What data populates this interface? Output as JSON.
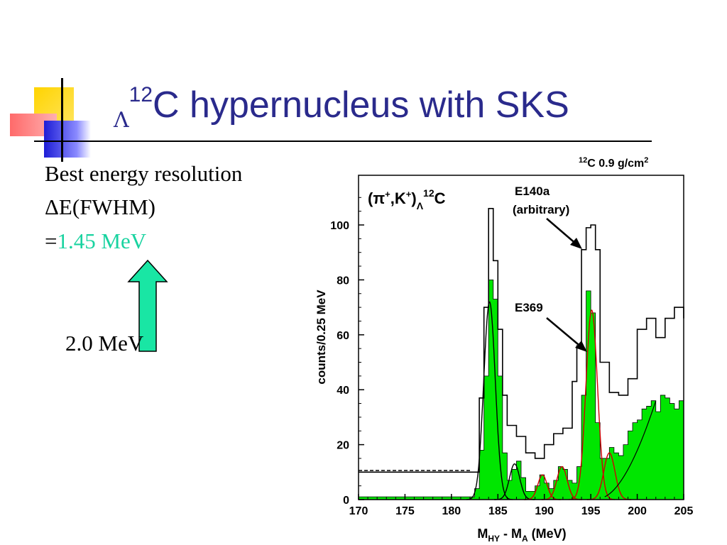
{
  "slide": {
    "title_prefix": "Λ",
    "title_superscript": "12",
    "title_text": "C hypernucleus with SKS",
    "body_line1": "Best energy resolution",
    "body_line2": "ΔE(FWHM)",
    "body_line3_prefix": "=",
    "body_line3_value": "1.45 MeV",
    "arrow_note": "2.0 MeV",
    "colors": {
      "title": "#2a2a8c",
      "accent": "#19d3a0",
      "arrow_fill": "#19e6a4"
    }
  },
  "chart_data": {
    "type": "line",
    "xlabel": "M_HY - M_A (MeV)",
    "ylabel": "counts/0.25 MeV",
    "xlim": [
      170,
      205
    ],
    "ylim": [
      0,
      115
    ],
    "x_ticks": [
      "170",
      "175",
      "180",
      "185",
      "190",
      "195",
      "200",
      "205"
    ],
    "y_ticks": [
      "0",
      "20",
      "40",
      "60",
      "80",
      "100"
    ],
    "annotations": {
      "reaction": "(π⁺,K⁺)Λ¹²C",
      "target": "¹²C 0.9 g/cm²",
      "e140a_line1": "E140a",
      "e140a_line2": "(arbitrary)",
      "e369": "E369"
    },
    "series": [
      {
        "name": "E140a",
        "x": [
          170,
          182.5,
          183.0,
          183.5,
          184.0,
          184.5,
          185.0,
          185.5,
          186,
          187,
          188,
          189,
          190,
          191,
          192,
          193,
          193.5,
          194,
          194.5,
          195,
          195.5,
          196,
          197,
          198,
          199,
          200,
          201,
          202,
          203,
          204,
          205
        ],
        "y": [
          10,
          10,
          37,
          70,
          106,
          87,
          62,
          38,
          27,
          23,
          17,
          15,
          20,
          24,
          26,
          43,
          56,
          91,
          99,
          100,
          91,
          50,
          39,
          38,
          44,
          62,
          66,
          59,
          66,
          70,
          66
        ]
      },
      {
        "name": "E369",
        "x": [
          170,
          182,
          182.5,
          183,
          183.5,
          184,
          184.5,
          185,
          185.5,
          186,
          186.5,
          187,
          187.5,
          188,
          189,
          189.5,
          190,
          190.5,
          191,
          191.5,
          192,
          192.5,
          193,
          193.5,
          194,
          194.5,
          195,
          195.5,
          196,
          196.5,
          197,
          197.5,
          198,
          198.5,
          199,
          199.5,
          200,
          200.5,
          201,
          201.5,
          202,
          202.5,
          203,
          203.5,
          204,
          204.5,
          205
        ],
        "y": [
          1,
          1,
          4,
          18,
          45,
          80,
          73,
          45,
          17,
          7,
          11,
          14,
          8,
          3,
          5,
          9,
          6,
          4,
          7,
          12,
          11,
          7,
          6,
          12,
          38,
          76,
          68,
          28,
          15,
          15,
          19,
          17,
          16,
          20,
          25,
          28,
          29,
          33,
          34,
          36,
          32,
          38,
          37,
          35,
          33,
          36,
          33
        ]
      }
    ]
  }
}
